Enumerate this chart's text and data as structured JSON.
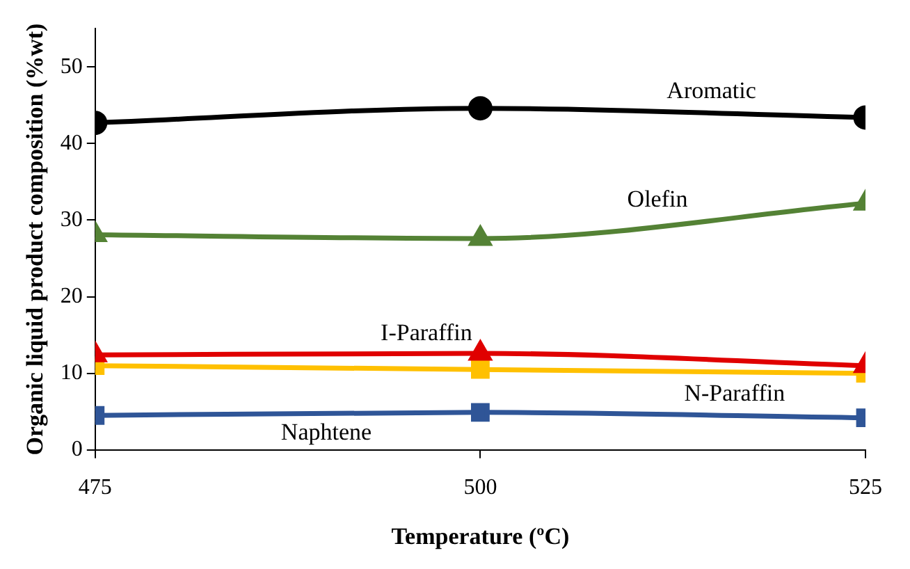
{
  "chart_data": {
    "type": "line",
    "xlabel": "Temperature (ºC)",
    "ylabel": "Organic liquid product composition (%wt)",
    "x": [
      475,
      500,
      525
    ],
    "xlim": [
      475,
      525
    ],
    "xticks": [
      475,
      500,
      525
    ],
    "ylim": [
      0,
      55
    ],
    "yticks": [
      0,
      10,
      20,
      30,
      40,
      50
    ],
    "grid": false,
    "legend": false,
    "series": [
      {
        "name": "Aromatic",
        "color": "#000000",
        "marker": "circle",
        "values": [
          42.7,
          44.6,
          43.4
        ]
      },
      {
        "name": "Olefin",
        "color": "#548235",
        "marker": "triangle",
        "values": [
          28.1,
          27.6,
          32.2
        ]
      },
      {
        "name": "I-Paraffin",
        "color": "#e00000",
        "marker": "triangle",
        "values": [
          12.4,
          12.6,
          11.0
        ]
      },
      {
        "name": "N-Paraffin",
        "color": "#ffc000",
        "marker": "square",
        "values": [
          11.0,
          10.5,
          10.0
        ]
      },
      {
        "name": "Naphtene",
        "color": "#2f5597",
        "marker": "square",
        "values": [
          4.5,
          4.9,
          4.2
        ]
      }
    ]
  }
}
